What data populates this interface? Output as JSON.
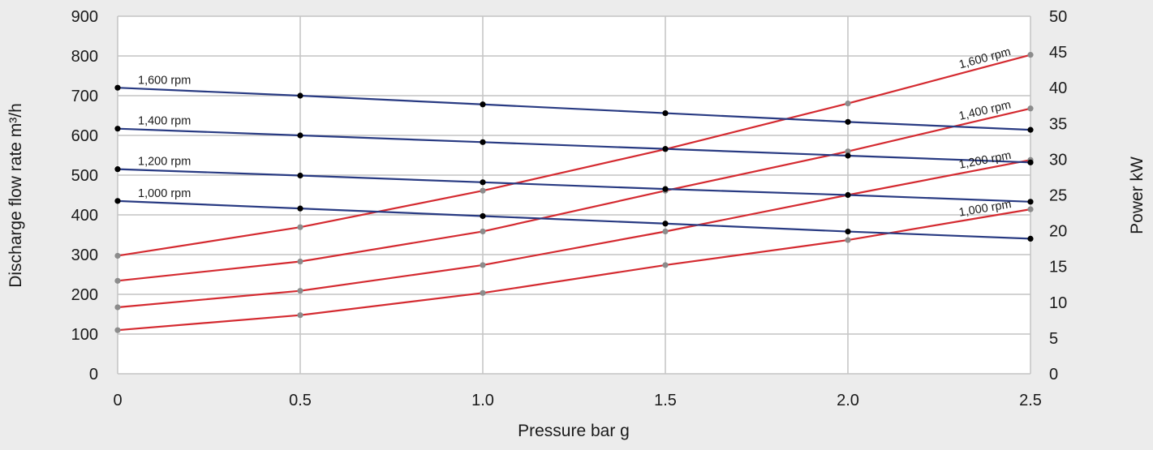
{
  "chart_data": {
    "type": "line",
    "title": "",
    "xlabel": "Pressure bar g",
    "ylabel": "Discharge flow rate m³/h",
    "y2label": "Power kW",
    "x": [
      0,
      0.5,
      1.0,
      1.5,
      2.0,
      2.5
    ],
    "x_tick_labels": [
      "0",
      "0.5",
      "1.0",
      "1.5",
      "2.0",
      "2.5"
    ],
    "xlim": [
      0,
      2.5
    ],
    "ylim": [
      0,
      900
    ],
    "y_ticks": [
      0,
      100,
      200,
      300,
      400,
      500,
      600,
      700,
      800,
      900
    ],
    "y2lim": [
      0,
      50
    ],
    "y2_ticks": [
      0,
      5,
      10,
      15,
      20,
      25,
      30,
      35,
      40,
      45,
      50
    ],
    "grid": true,
    "legend": "none",
    "colors": {
      "flow": "#283a82",
      "power": "#d42a30",
      "flow_marker": "#000000",
      "power_marker": "#8c8c8c",
      "grid": "#c4c4c4",
      "plot_background": "#ffffff",
      "page_background": "#ececec"
    },
    "flow_series": [
      {
        "name": "1,600 rpm",
        "axis": "left",
        "values": [
          720,
          700,
          678,
          656,
          634,
          614
        ]
      },
      {
        "name": "1,400 rpm",
        "axis": "left",
        "values": [
          617,
          600,
          583,
          566,
          549,
          532
        ]
      },
      {
        "name": "1,200 rpm",
        "axis": "left",
        "values": [
          515,
          499,
          482,
          465,
          450,
          433
        ]
      },
      {
        "name": "1,000 rpm",
        "axis": "left",
        "values": [
          435,
          416,
          397,
          378,
          358,
          340
        ]
      }
    ],
    "power_series": [
      {
        "name": "1,600 rpm",
        "axis": "right",
        "values": [
          16.5,
          20.5,
          25.6,
          31.4,
          37.8,
          44.6
        ]
      },
      {
        "name": "1,400 rpm",
        "axis": "right",
        "values": [
          13.0,
          15.7,
          19.9,
          25.6,
          31.1,
          37.1
        ]
      },
      {
        "name": "1,200 rpm",
        "axis": "right",
        "values": [
          9.3,
          11.6,
          15.2,
          19.9,
          25.0,
          29.9
        ]
      },
      {
        "name": "1,000 rpm",
        "axis": "right",
        "values": [
          6.1,
          8.2,
          11.3,
          15.2,
          18.7,
          23.0
        ]
      }
    ]
  }
}
